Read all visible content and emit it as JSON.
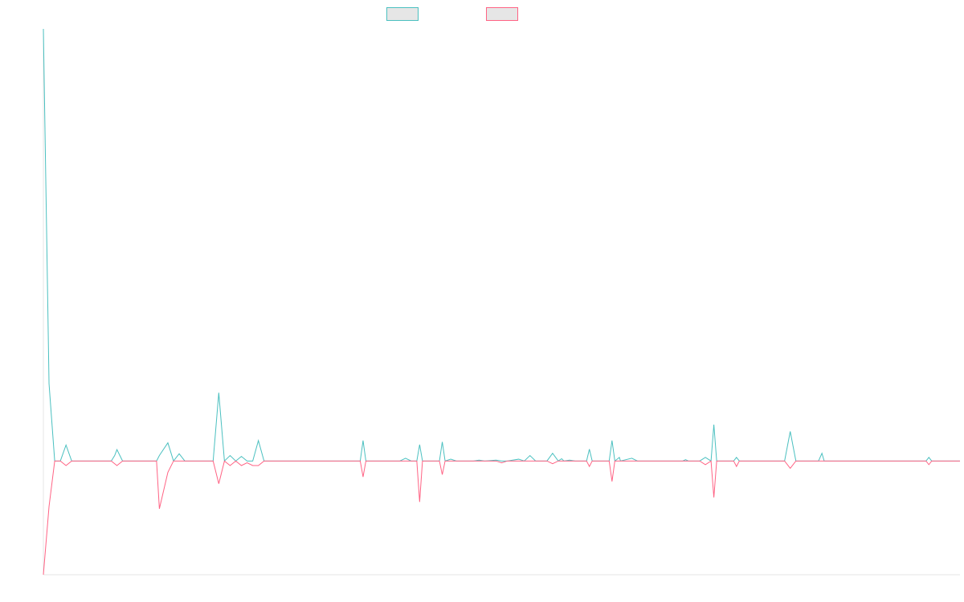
{
  "chart_data": {
    "type": "line",
    "title": "",
    "xlabel": "",
    "ylabel": "",
    "x_count": 163,
    "ylim": [
      -25,
      95
    ],
    "grid": false,
    "legend": {
      "position": "top-center",
      "entries": [
        "",
        ""
      ]
    },
    "series": [
      {
        "name": "",
        "color": "#4bc0c0",
        "fill": "#e6e6e6",
        "points": [
          [
            0,
            95
          ],
          [
            1,
            17
          ],
          [
            2,
            0
          ],
          [
            3,
            0
          ],
          [
            4,
            3.5
          ],
          [
            5,
            0
          ],
          [
            9,
            0
          ],
          [
            10,
            0
          ],
          [
            12,
            0
          ],
          [
            12.6,
            1.2
          ],
          [
            13,
            2.5
          ],
          [
            14,
            0
          ],
          [
            20,
            0
          ],
          [
            20.5,
            1.2
          ],
          [
            22,
            4
          ],
          [
            23,
            0
          ],
          [
            24,
            1.6
          ],
          [
            25,
            0
          ],
          [
            30,
            0
          ],
          [
            31,
            15
          ],
          [
            32,
            0
          ],
          [
            33,
            1.2
          ],
          [
            34,
            0
          ],
          [
            35,
            1
          ],
          [
            36,
            0
          ],
          [
            37,
            0
          ],
          [
            38,
            4.5
          ],
          [
            39,
            0
          ],
          [
            56,
            0
          ],
          [
            56.5,
            4.5
          ],
          [
            57,
            0
          ],
          [
            63,
            0
          ],
          [
            64,
            0.6
          ],
          [
            65,
            0
          ],
          [
            66,
            0
          ],
          [
            66.5,
            3.6
          ],
          [
            67,
            0
          ],
          [
            70,
            0
          ],
          [
            70.5,
            4.2
          ],
          [
            71,
            0
          ],
          [
            72,
            0.4
          ],
          [
            73,
            0
          ],
          [
            76,
            0
          ],
          [
            77,
            0.2
          ],
          [
            78,
            0
          ],
          [
            80,
            0.2
          ],
          [
            81,
            0
          ],
          [
            82,
            0
          ],
          [
            84,
            0.4
          ],
          [
            85,
            0
          ],
          [
            86,
            1.2
          ],
          [
            87,
            0
          ],
          [
            89,
            0
          ],
          [
            90,
            1.7
          ],
          [
            91,
            0
          ],
          [
            91.6,
            0.5
          ],
          [
            92,
            0
          ],
          [
            93,
            0.2
          ],
          [
            94,
            0
          ],
          [
            96,
            0
          ],
          [
            96.5,
            2.6
          ],
          [
            97,
            0
          ],
          [
            100,
            0
          ],
          [
            100.5,
            4.5
          ],
          [
            101,
            0
          ],
          [
            101.8,
            0.8
          ],
          [
            102,
            0
          ],
          [
            104,
            0.6
          ],
          [
            105,
            0
          ],
          [
            113,
            0
          ],
          [
            113.5,
            0.3
          ],
          [
            114,
            0
          ],
          [
            116,
            0
          ],
          [
            117,
            0.8
          ],
          [
            118,
            0
          ],
          [
            118.5,
            8
          ],
          [
            119,
            0
          ],
          [
            122,
            0
          ],
          [
            122.5,
            0.8
          ],
          [
            123,
            0
          ],
          [
            131,
            0
          ],
          [
            132,
            6.5
          ],
          [
            133,
            0
          ],
          [
            137,
            0
          ],
          [
            137.6,
            1.7
          ],
          [
            138,
            0
          ],
          [
            156,
            0
          ],
          [
            156.5,
            0.8
          ],
          [
            157,
            0
          ],
          [
            162,
            0
          ]
        ]
      },
      {
        "name": "",
        "color": "#ff6384",
        "fill": "#e6e6e6",
        "points": [
          [
            0,
            -25
          ],
          [
            1,
            -10
          ],
          [
            2,
            0
          ],
          [
            3,
            0
          ],
          [
            4,
            -1
          ],
          [
            5,
            0
          ],
          [
            9,
            0
          ],
          [
            10,
            0
          ],
          [
            12,
            0
          ],
          [
            13,
            -1
          ],
          [
            14,
            0
          ],
          [
            20,
            0
          ],
          [
            20.5,
            -10.5
          ],
          [
            22,
            -2.5
          ],
          [
            23,
            0
          ],
          [
            24,
            0
          ],
          [
            25,
            0
          ],
          [
            30,
            0
          ],
          [
            31,
            -5
          ],
          [
            32,
            0
          ],
          [
            33,
            -1
          ],
          [
            34,
            0
          ],
          [
            35,
            -1
          ],
          [
            36,
            -0.4
          ],
          [
            37,
            -1
          ],
          [
            38,
            -1
          ],
          [
            39,
            0
          ],
          [
            56,
            0
          ],
          [
            56.5,
            -3.5
          ],
          [
            57,
            0
          ],
          [
            63,
            0
          ],
          [
            64,
            0
          ],
          [
            65,
            0
          ],
          [
            66,
            0
          ],
          [
            66.5,
            -9
          ],
          [
            67,
            0
          ],
          [
            70,
            0
          ],
          [
            70.5,
            -3
          ],
          [
            71,
            0
          ],
          [
            72,
            0
          ],
          [
            73,
            0
          ],
          [
            76,
            0
          ],
          [
            77,
            0
          ],
          [
            78,
            0
          ],
          [
            80,
            0
          ],
          [
            81,
            -0.4
          ],
          [
            82,
            0
          ],
          [
            84,
            0
          ],
          [
            85,
            0
          ],
          [
            86,
            0
          ],
          [
            87,
            0
          ],
          [
            89,
            0
          ],
          [
            90,
            -0.6
          ],
          [
            91,
            0
          ],
          [
            91.6,
            0
          ],
          [
            92,
            0
          ],
          [
            93,
            0
          ],
          [
            94,
            0
          ],
          [
            96,
            0
          ],
          [
            96.5,
            -1.2
          ],
          [
            97,
            0
          ],
          [
            100,
            0
          ],
          [
            100.5,
            -4.5
          ],
          [
            101,
            0
          ],
          [
            101.8,
            0
          ],
          [
            102,
            0
          ],
          [
            104,
            0
          ],
          [
            105,
            0
          ],
          [
            113,
            0
          ],
          [
            113.5,
            0
          ],
          [
            114,
            0
          ],
          [
            116,
            0
          ],
          [
            117,
            -0.8
          ],
          [
            118,
            0
          ],
          [
            118.5,
            -8
          ],
          [
            119,
            0
          ],
          [
            122,
            0
          ],
          [
            122.5,
            -1.2
          ],
          [
            123,
            0
          ],
          [
            131,
            0
          ],
          [
            132,
            -1.6
          ],
          [
            133,
            0
          ],
          [
            137,
            0
          ],
          [
            137.6,
            0
          ],
          [
            138,
            0
          ],
          [
            156,
            0
          ],
          [
            156.5,
            -0.8
          ],
          [
            157,
            0
          ],
          [
            162,
            0
          ]
        ]
      }
    ]
  }
}
